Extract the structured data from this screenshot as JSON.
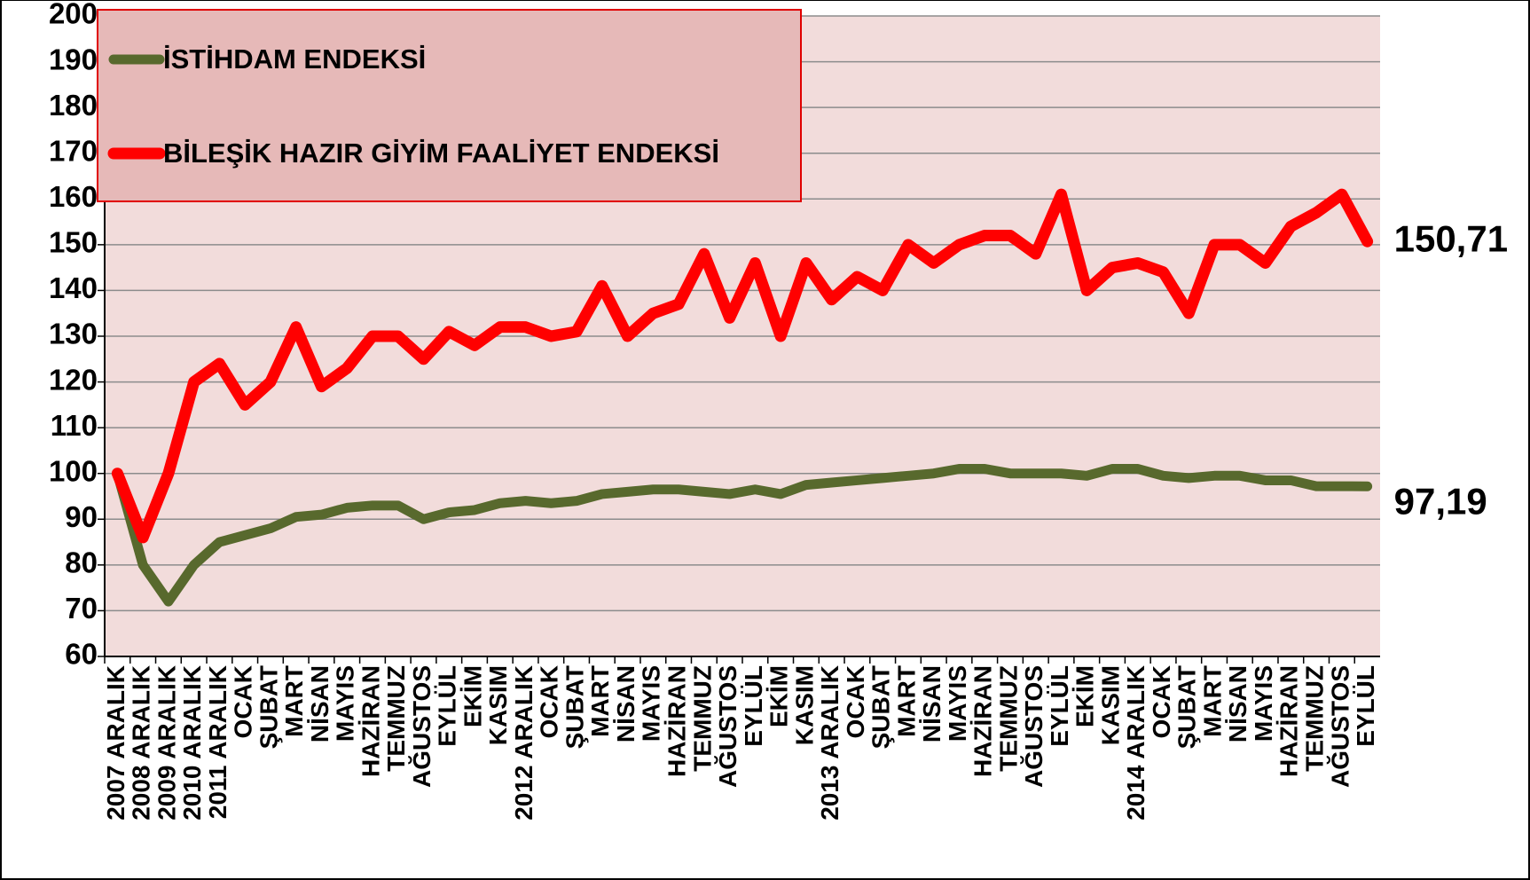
{
  "chart_data": {
    "type": "line",
    "categories": [
      "2007 ARALIK",
      "2008 ARALIK",
      "2009 ARALIK",
      "2010 ARALIK",
      "2011 ARALIK",
      "OCAK",
      "ŞUBAT",
      "MART",
      "NİSAN",
      "MAYIS",
      "HAZİRAN",
      "TEMMUZ",
      "AĞUSTOS",
      "EYLÜL",
      "EKİM",
      "KASIM",
      "2012 ARALIK",
      "OCAK",
      "ŞUBAT",
      "MART",
      "NİSAN",
      "MAYIS",
      "HAZİRAN",
      "TEMMUZ",
      "AĞUSTOS",
      "EYLÜL",
      "EKİM",
      "KASIM",
      "2013 ARALIK",
      "OCAK",
      "ŞUBAT",
      "MART",
      "NİSAN",
      "MAYIS",
      "HAZİRAN",
      "TEMMUZ",
      "AĞUSTOS",
      "EYLÜL",
      "EKİM",
      "KASIM",
      "2014 ARALIK",
      "OCAK",
      "ŞUBAT",
      "MART",
      "NİSAN",
      "MAYIS",
      "HAZİRAN",
      "TEMMUZ",
      "AĞUSTOS",
      "EYLÜL"
    ],
    "series": [
      {
        "name": "İSTİHDAM ENDEKSİ",
        "color": "#58692d",
        "values": [
          100,
          80,
          72,
          80,
          85,
          86.5,
          88,
          90.5,
          91,
          92.5,
          93,
          93,
          90,
          91.5,
          92,
          93.5,
          94,
          93.5,
          94,
          95.5,
          96,
          96.5,
          96.5,
          96,
          95.5,
          96.5,
          95.5,
          97.5,
          98,
          98.5,
          99,
          99.5,
          100,
          101,
          101,
          100,
          100,
          100,
          99.5,
          101,
          101,
          99.5,
          99,
          99.5,
          99.5,
          98.5,
          98.5,
          97.2,
          97.2,
          97.19
        ],
        "value_labels": [
          null,
          null,
          null,
          null,
          null,
          null,
          null,
          null,
          null,
          null,
          null,
          null,
          null,
          null,
          null,
          null,
          null,
          null,
          null,
          null,
          null,
          null,
          null,
          null,
          null,
          null,
          null,
          null,
          null,
          null,
          null,
          null,
          null,
          null,
          null,
          null,
          null,
          null,
          null,
          null,
          null,
          null,
          null,
          null,
          null,
          null,
          null,
          null,
          null,
          "97,19"
        ]
      },
      {
        "name": "BİLEŞİK HAZIR GİYİM FAALİYET ENDEKSİ",
        "color": "#ff0000",
        "values": [
          100,
          86,
          100,
          120,
          124,
          115,
          120,
          132,
          119,
          123,
          130,
          130,
          125,
          131,
          128,
          132,
          132,
          130,
          131,
          141,
          130,
          135,
          137,
          148,
          134,
          146,
          130,
          146,
          138,
          143,
          140,
          150,
          146,
          150,
          152,
          152,
          148,
          161,
          140,
          145,
          146,
          144,
          135,
          150,
          150,
          146,
          154,
          157,
          161,
          150.71
        ],
        "value_labels": [
          null,
          null,
          null,
          null,
          null,
          null,
          null,
          null,
          null,
          null,
          null,
          null,
          null,
          null,
          null,
          null,
          null,
          null,
          null,
          null,
          null,
          null,
          null,
          null,
          null,
          null,
          null,
          null,
          null,
          null,
          null,
          null,
          null,
          null,
          null,
          null,
          null,
          null,
          null,
          null,
          null,
          null,
          null,
          null,
          null,
          null,
          null,
          null,
          null,
          "150,71"
        ]
      }
    ],
    "ylim": [
      60,
      200
    ],
    "yticks": [
      60,
      70,
      80,
      90,
      100,
      110,
      120,
      130,
      140,
      150,
      160,
      170,
      180,
      190,
      200
    ],
    "grid": true,
    "legend": "upper left"
  }
}
